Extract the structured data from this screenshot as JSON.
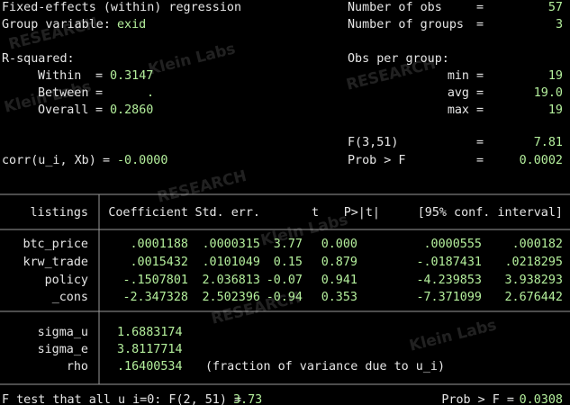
{
  "header": {
    "title": "Fixed-effects (within) regression",
    "group_label": "Group variable:",
    "group_value": "exid",
    "r_squared_label": "R-squared:",
    "within_label": "Within",
    "within_value": "0.3147",
    "between_label": "Between",
    "between_value": ".",
    "overall_label": "Overall",
    "overall_value": "0.2860",
    "corr_label": "corr(u_i, Xb)",
    "corr_value": "-0.0000",
    "equals": "=",
    "nobs_label": "Number of obs",
    "nobs_value": "57",
    "ngroups_label": "Number of groups",
    "ngroups_value": "3",
    "obs_per_group_label": "Obs per group:",
    "min_label": "min",
    "min_value": "19",
    "avg_label": "avg",
    "avg_value": "19.0",
    "max_label": "max",
    "max_value": "19",
    "f_label": "F(3,51)",
    "f_value": "7.81",
    "probf_label": "Prob > F",
    "probf_value": "0.0002"
  },
  "table": {
    "columns": [
      "listings",
      "Coefficient",
      "Std. err.",
      "t",
      "P>|t|",
      "[95% conf. interval]"
    ],
    "rows": [
      [
        "btc_price",
        ".0001188",
        ".0000315",
        "3.77",
        "0.000",
        ".0000555",
        ".000182"
      ],
      [
        "krw_trade",
        ".0015432",
        ".0101049",
        "0.15",
        "0.879",
        "-.0187431",
        ".0218295"
      ],
      [
        "policy",
        "-.1507801",
        "2.036813",
        "-0.07",
        "0.941",
        "-4.239853",
        "3.938293"
      ],
      [
        "_cons",
        "-2.347328",
        "2.502396",
        "-0.94",
        "0.353",
        "-7.371099",
        "2.676442"
      ]
    ],
    "sigma_rows": [
      [
        "sigma_u",
        "1.6883174"
      ],
      [
        "sigma_e",
        "3.8117714"
      ],
      [
        "rho",
        ".16400534"
      ]
    ],
    "rho_note": "(fraction of variance due to u_i)"
  },
  "footer": {
    "f_test_label": "F test that all u_i=0: F(2, 51) =",
    "f_test_value": "3.73",
    "prob_label": "Prob > F =",
    "prob_value": "0.0308"
  },
  "watermarks": [
    "RESEARCH",
    "Klein Labs",
    "RESEARCH",
    "Klein Labs",
    "RESEARCH",
    "Klein Labs",
    "RESEARCH",
    "Klein Labs"
  ]
}
